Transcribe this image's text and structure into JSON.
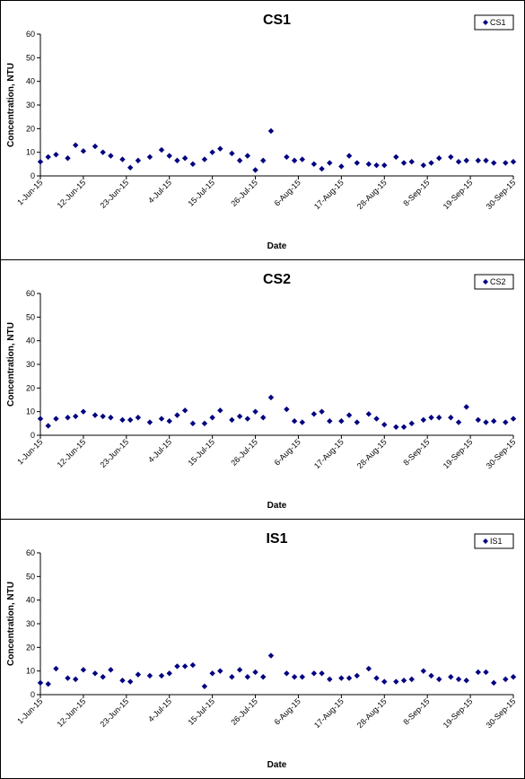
{
  "chart_data": [
    {
      "type": "scatter",
      "title": "CS1",
      "xlabel": "Date",
      "ylabel": "Concentration, NTU",
      "ylim": [
        0,
        60
      ],
      "yticks": [
        0,
        10,
        20,
        30,
        40,
        50,
        60
      ],
      "xlim": [
        "2015-06-01",
        "2015-09-30"
      ],
      "xtick_labels": [
        "1-Jun-15",
        "12-Jun-15",
        "23-Jun-15",
        "4-Jul-15",
        "15-Jul-15",
        "26-Jul-15",
        "6-Aug-15",
        "17-Aug-15",
        "28-Aug-15",
        "8-Sep-15",
        "19-Sep-15",
        "30-Sep-15"
      ],
      "grid": false,
      "legend_position": "top-right",
      "marker_color": "#000080",
      "series": [
        {
          "name": "CS1",
          "x": [
            "2015-06-01",
            "2015-06-03",
            "2015-06-05",
            "2015-06-08",
            "2015-06-10",
            "2015-06-12",
            "2015-06-15",
            "2015-06-17",
            "2015-06-19",
            "2015-06-22",
            "2015-06-24",
            "2015-06-26",
            "2015-06-29",
            "2015-07-02",
            "2015-07-04",
            "2015-07-06",
            "2015-07-08",
            "2015-07-10",
            "2015-07-13",
            "2015-07-15",
            "2015-07-17",
            "2015-07-20",
            "2015-07-22",
            "2015-07-24",
            "2015-07-26",
            "2015-07-28",
            "2015-07-30",
            "2015-08-03",
            "2015-08-05",
            "2015-08-07",
            "2015-08-10",
            "2015-08-12",
            "2015-08-14",
            "2015-08-17",
            "2015-08-19",
            "2015-08-21",
            "2015-08-24",
            "2015-08-26",
            "2015-08-28",
            "2015-08-31",
            "2015-09-02",
            "2015-09-04",
            "2015-09-07",
            "2015-09-09",
            "2015-09-11",
            "2015-09-14",
            "2015-09-16",
            "2015-09-18",
            "2015-09-21",
            "2015-09-23",
            "2015-09-25",
            "2015-09-28",
            "2015-09-30"
          ],
          "values": [
            6,
            8,
            9,
            7.5,
            13,
            10.5,
            12.5,
            10,
            8.5,
            7,
            3.5,
            6.5,
            8,
            11,
            8.5,
            6.5,
            7.5,
            5,
            7,
            10,
            11.5,
            9.5,
            6.5,
            8.5,
            2.5,
            6.5,
            19,
            8,
            6.5,
            7,
            5,
            3,
            5.5,
            4,
            8.5,
            5.5,
            5,
            4.5,
            4.5,
            8,
            5.5,
            6,
            4.5,
            5.5,
            7.5,
            8,
            6,
            6.5,
            6.5,
            6.5,
            5.5,
            5.5,
            6
          ]
        }
      ]
    },
    {
      "type": "scatter",
      "title": "CS2",
      "xlabel": "Date",
      "ylabel": "Concentration, NTU",
      "ylim": [
        0,
        60
      ],
      "yticks": [
        0,
        10,
        20,
        30,
        40,
        50,
        60
      ],
      "xlim": [
        "2015-06-01",
        "2015-09-30"
      ],
      "xtick_labels": [
        "1-Jun-15",
        "12-Jun-15",
        "23-Jun-15",
        "4-Jul-15",
        "15-Jul-15",
        "26-Jul-15",
        "6-Aug-15",
        "17-Aug-15",
        "28-Aug-15",
        "8-Sep-15",
        "19-Sep-15",
        "30-Sep-15"
      ],
      "grid": false,
      "legend_position": "top-right",
      "marker_color": "#000080",
      "series": [
        {
          "name": "CS2",
          "x": [
            "2015-06-01",
            "2015-06-03",
            "2015-06-05",
            "2015-06-08",
            "2015-06-10",
            "2015-06-12",
            "2015-06-15",
            "2015-06-17",
            "2015-06-19",
            "2015-06-22",
            "2015-06-24",
            "2015-06-26",
            "2015-06-29",
            "2015-07-02",
            "2015-07-04",
            "2015-07-06",
            "2015-07-08",
            "2015-07-10",
            "2015-07-13",
            "2015-07-15",
            "2015-07-17",
            "2015-07-20",
            "2015-07-22",
            "2015-07-24",
            "2015-07-26",
            "2015-07-28",
            "2015-07-30",
            "2015-08-03",
            "2015-08-05",
            "2015-08-07",
            "2015-08-10",
            "2015-08-12",
            "2015-08-14",
            "2015-08-17",
            "2015-08-19",
            "2015-08-21",
            "2015-08-24",
            "2015-08-26",
            "2015-08-28",
            "2015-08-31",
            "2015-09-02",
            "2015-09-04",
            "2015-09-07",
            "2015-09-09",
            "2015-09-11",
            "2015-09-14",
            "2015-09-16",
            "2015-09-18",
            "2015-09-21",
            "2015-09-23",
            "2015-09-25",
            "2015-09-28",
            "2015-09-30"
          ],
          "values": [
            7,
            4,
            7,
            7.5,
            8,
            10,
            8.5,
            8,
            7.5,
            6.5,
            6.5,
            7.5,
            5.5,
            7,
            6,
            8.5,
            10.5,
            5,
            5,
            7.5,
            10.5,
            6.5,
            8,
            7,
            10,
            7.5,
            16,
            11,
            6,
            5.5,
            9,
            10,
            6,
            6,
            8.5,
            5.5,
            9,
            7,
            4.5,
            3.5,
            3.5,
            5,
            6.5,
            7.5,
            7.5,
            7.5,
            5.5,
            12,
            6.5,
            5.5,
            6,
            5.5,
            7
          ]
        }
      ]
    },
    {
      "type": "scatter",
      "title": "IS1",
      "xlabel": "Date",
      "ylabel": "Concentration, NTU",
      "ylim": [
        0,
        60
      ],
      "yticks": [
        0,
        10,
        20,
        30,
        40,
        50,
        60
      ],
      "xlim": [
        "2015-06-01",
        "2015-09-30"
      ],
      "xtick_labels": [
        "1-Jun-15",
        "12-Jun-15",
        "23-Jun-15",
        "4-Jul-15",
        "15-Jul-15",
        "26-Jul-15",
        "6-Aug-15",
        "17-Aug-15",
        "28-Aug-15",
        "8-Sep-15",
        "19-Sep-15",
        "30-Sep-15"
      ],
      "grid": false,
      "legend_position": "top-right",
      "marker_color": "#000080",
      "series": [
        {
          "name": "IS1",
          "x": [
            "2015-06-01",
            "2015-06-03",
            "2015-06-05",
            "2015-06-08",
            "2015-06-10",
            "2015-06-12",
            "2015-06-15",
            "2015-06-17",
            "2015-06-19",
            "2015-06-22",
            "2015-06-24",
            "2015-06-26",
            "2015-06-29",
            "2015-07-02",
            "2015-07-04",
            "2015-07-06",
            "2015-07-08",
            "2015-07-10",
            "2015-07-13",
            "2015-07-15",
            "2015-07-17",
            "2015-07-20",
            "2015-07-22",
            "2015-07-24",
            "2015-07-26",
            "2015-07-28",
            "2015-07-30",
            "2015-08-03",
            "2015-08-05",
            "2015-08-07",
            "2015-08-10",
            "2015-08-12",
            "2015-08-14",
            "2015-08-17",
            "2015-08-19",
            "2015-08-21",
            "2015-08-24",
            "2015-08-26",
            "2015-08-28",
            "2015-08-31",
            "2015-09-02",
            "2015-09-04",
            "2015-09-07",
            "2015-09-09",
            "2015-09-11",
            "2015-09-14",
            "2015-09-16",
            "2015-09-18",
            "2015-09-21",
            "2015-09-23",
            "2015-09-25",
            "2015-09-28",
            "2015-09-30"
          ],
          "values": [
            5,
            4.5,
            11,
            7,
            6.5,
            10.5,
            9,
            7.5,
            10.5,
            6,
            5.5,
            8.5,
            8,
            8,
            9,
            12,
            12,
            12.5,
            3.5,
            9,
            10,
            7.5,
            10.5,
            7.5,
            9.5,
            7.5,
            16.5,
            9,
            7.5,
            7.5,
            9,
            9,
            6.5,
            7,
            7,
            8,
            11,
            7,
            5.5,
            5.5,
            6,
            6.5,
            10,
            8,
            6.5,
            7.5,
            6.5,
            6,
            9.5,
            9.5,
            5,
            6.5,
            7.5
          ]
        }
      ]
    }
  ]
}
